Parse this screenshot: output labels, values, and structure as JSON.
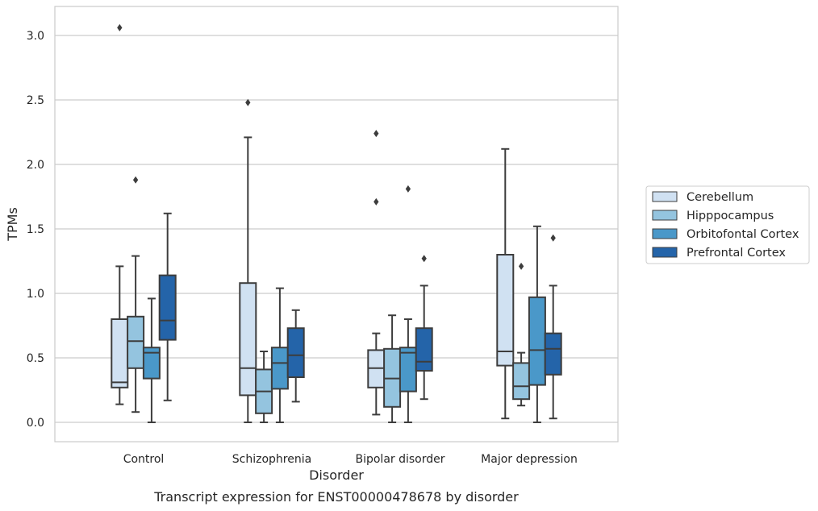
{
  "chart_data": {
    "type": "boxplot",
    "title": "",
    "caption": "Transcript expression for ENST00000478678 by disorder",
    "xlabel": "Disorder",
    "ylabel": "TPMs",
    "ylim": [
      -0.15,
      3.22
    ],
    "yticks": [
      "0.0",
      "0.5",
      "1.0",
      "1.5",
      "2.0",
      "2.5",
      "3.0"
    ],
    "categories": [
      "Control",
      "Schizophrenia",
      "Bipolar disorder",
      "Major depression"
    ],
    "grid": "horizontal",
    "legend_position": "right",
    "series": [
      {
        "name": "Cerebellum",
        "color": "#d0e1f2",
        "boxes": [
          {
            "whislo": 0.14,
            "q1": 0.27,
            "med": 0.31,
            "q3": 0.8,
            "whishi": 1.21,
            "fliers": [
              3.06
            ]
          },
          {
            "whislo": 0.0,
            "q1": 0.21,
            "med": 0.42,
            "q3": 1.08,
            "whishi": 2.21,
            "fliers": [
              2.48
            ]
          },
          {
            "whislo": 0.06,
            "q1": 0.27,
            "med": 0.42,
            "q3": 0.56,
            "whishi": 0.69,
            "fliers": [
              1.71,
              2.24
            ]
          },
          {
            "whislo": 0.03,
            "q1": 0.44,
            "med": 0.55,
            "q3": 1.3,
            "whishi": 2.12,
            "fliers": []
          }
        ]
      },
      {
        "name": "Hipppocampus",
        "color": "#94c4df",
        "boxes": [
          {
            "whislo": 0.08,
            "q1": 0.42,
            "med": 0.63,
            "q3": 0.82,
            "whishi": 1.29,
            "fliers": [
              1.88
            ]
          },
          {
            "whislo": 0.0,
            "q1": 0.07,
            "med": 0.24,
            "q3": 0.41,
            "whishi": 0.55,
            "fliers": []
          },
          {
            "whislo": 0.0,
            "q1": 0.12,
            "med": 0.34,
            "q3": 0.57,
            "whishi": 0.83,
            "fliers": []
          },
          {
            "whislo": 0.13,
            "q1": 0.18,
            "med": 0.28,
            "q3": 0.46,
            "whishi": 0.54,
            "fliers": [
              1.21
            ]
          }
        ]
      },
      {
        "name": "Orbitofontal Cortex",
        "color": "#4a98c9",
        "boxes": [
          {
            "whislo": 0.0,
            "q1": 0.34,
            "med": 0.54,
            "q3": 0.58,
            "whishi": 0.96,
            "fliers": []
          },
          {
            "whislo": 0.0,
            "q1": 0.26,
            "med": 0.46,
            "q3": 0.58,
            "whishi": 1.04,
            "fliers": []
          },
          {
            "whislo": 0.0,
            "q1": 0.24,
            "med": 0.54,
            "q3": 0.58,
            "whishi": 0.8,
            "fliers": [
              1.81
            ]
          },
          {
            "whislo": 0.0,
            "q1": 0.29,
            "med": 0.56,
            "q3": 0.97,
            "whishi": 1.52,
            "fliers": []
          }
        ]
      },
      {
        "name": "Prefrontal Cortex",
        "color": "#2464a9",
        "boxes": [
          {
            "whislo": 0.17,
            "q1": 0.64,
            "med": 0.79,
            "q3": 1.14,
            "whishi": 1.62,
            "fliers": []
          },
          {
            "whislo": 0.16,
            "q1": 0.35,
            "med": 0.52,
            "q3": 0.73,
            "whishi": 0.87,
            "fliers": []
          },
          {
            "whislo": 0.18,
            "q1": 0.4,
            "med": 0.47,
            "q3": 0.73,
            "whishi": 1.06,
            "fliers": [
              1.27
            ]
          },
          {
            "whislo": 0.03,
            "q1": 0.37,
            "med": 0.57,
            "q3": 0.69,
            "whishi": 1.06,
            "fliers": [
              1.43
            ]
          }
        ]
      }
    ]
  }
}
